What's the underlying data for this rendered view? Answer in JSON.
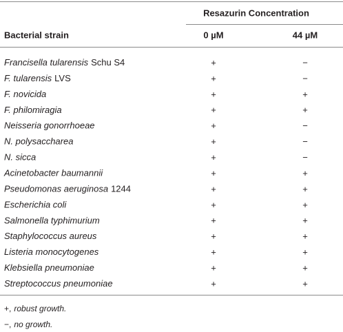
{
  "header": {
    "group": "Resazurin Concentration",
    "first_column": "Bacterial strain",
    "columns": [
      "0 µM",
      "44 µM"
    ]
  },
  "rows": [
    {
      "species": "Francisella tularensis",
      "strain": "Schu S4",
      "cells": [
        "+",
        "−"
      ]
    },
    {
      "species": "F. tularensis",
      "strain": "LVS",
      "cells": [
        "+",
        "−"
      ]
    },
    {
      "species": "F. novicida",
      "cells": [
        "+",
        "+"
      ]
    },
    {
      "species": "F. philomiragia",
      "cells": [
        "+",
        "+"
      ]
    },
    {
      "species": "Neisseria gonorrhoeae",
      "cells": [
        "+",
        "−"
      ]
    },
    {
      "species": "N. polysaccharea",
      "cells": [
        "+",
        "−"
      ]
    },
    {
      "species": "N. sicca",
      "cells": [
        "+",
        "−"
      ]
    },
    {
      "species": "Acinetobacter baumannii",
      "cells": [
        "+",
        "+"
      ]
    },
    {
      "species": "Pseudomonas aeruginosa",
      "strain": "1244",
      "cells": [
        "+",
        "+"
      ]
    },
    {
      "species": "Escherichia coli",
      "cells": [
        "+",
        "+"
      ]
    },
    {
      "species": "Salmonella typhimurium",
      "cells": [
        "+",
        "+"
      ]
    },
    {
      "species": "Staphylococcus aureus",
      "cells": [
        "+",
        "+"
      ]
    },
    {
      "species": "Listeria monocytogenes",
      "cells": [
        "+",
        "+"
      ]
    },
    {
      "species": "Klebsiella pneumoniae",
      "cells": [
        "+",
        "+"
      ]
    },
    {
      "species": "Streptococcus pneumoniae",
      "cells": [
        "+",
        "+"
      ]
    }
  ],
  "footnotes": [
    {
      "symbol": "+,",
      "text": "robust growth."
    },
    {
      "symbol": "−,",
      "text": "no growth."
    }
  ]
}
